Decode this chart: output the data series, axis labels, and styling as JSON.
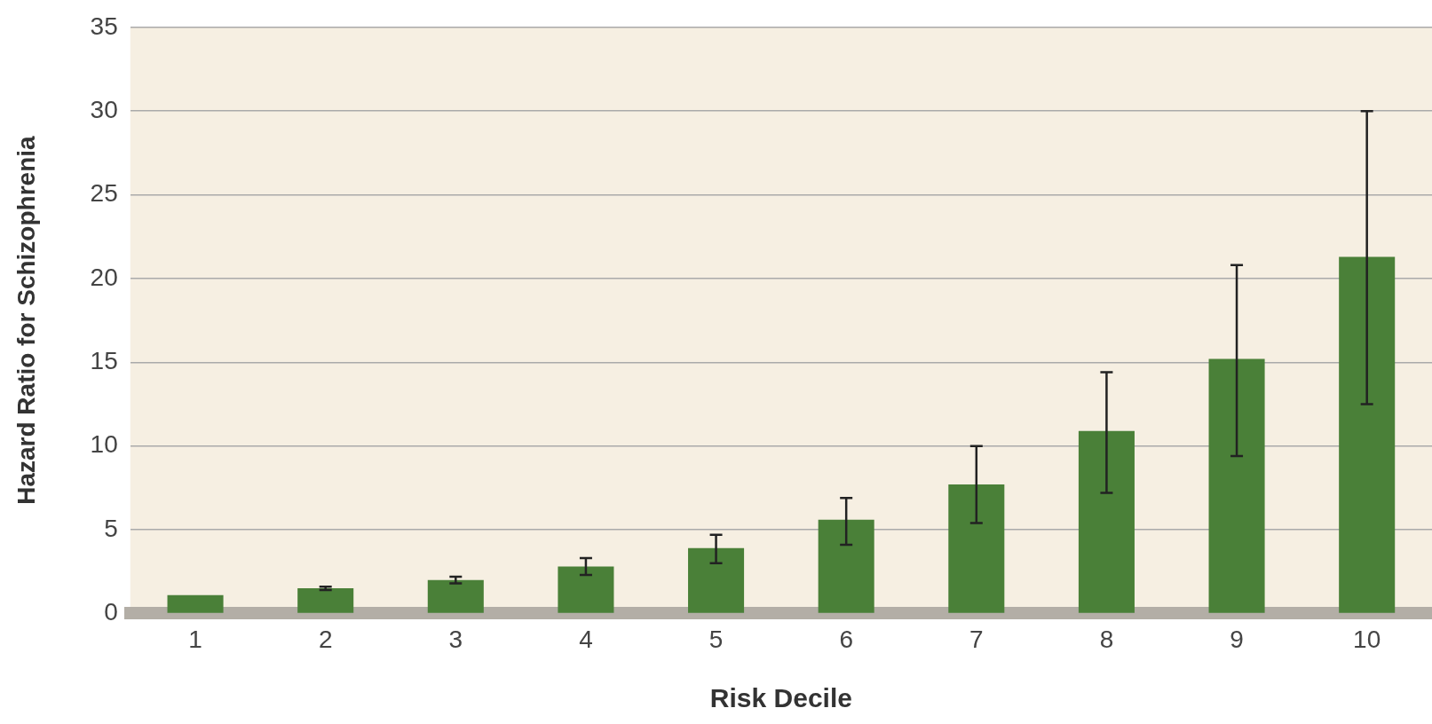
{
  "chart_data": {
    "type": "bar",
    "xlabel": "Risk Decile",
    "ylabel": "Hazard Ratio for Schizophrenia",
    "categories": [
      "1",
      "2",
      "3",
      "4",
      "5",
      "6",
      "7",
      "8",
      "9",
      "10"
    ],
    "values": [
      1.1,
      1.5,
      2.0,
      2.8,
      3.9,
      5.6,
      7.7,
      10.9,
      15.2,
      21.3
    ],
    "errors": [
      null,
      [
        1.4,
        1.6
      ],
      [
        1.8,
        2.2
      ],
      [
        2.3,
        3.3
      ],
      [
        3.0,
        4.7
      ],
      [
        4.1,
        6.9
      ],
      [
        5.4,
        10.0
      ],
      [
        7.2,
        14.4
      ],
      [
        9.4,
        20.8
      ],
      [
        12.5,
        30.0
      ]
    ],
    "color": "#4a8038",
    "ylim": [
      0,
      35
    ],
    "yticks": [
      0,
      5,
      10,
      15,
      20,
      25,
      30,
      35
    ],
    "grid": "y"
  }
}
